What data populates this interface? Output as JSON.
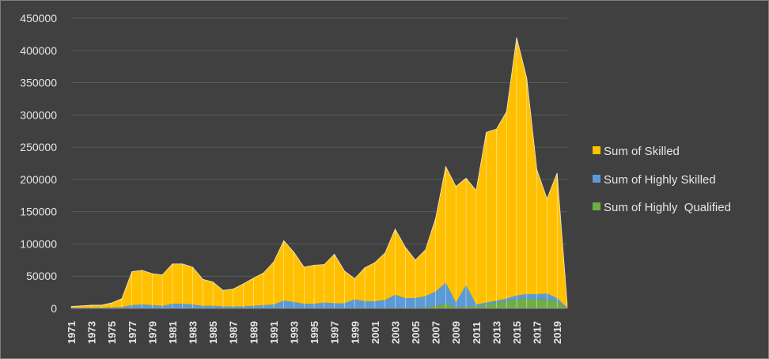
{
  "chart_data": {
    "type": "area",
    "stacked": true,
    "title": "",
    "xlabel": "",
    "ylabel": "",
    "ylim": [
      0,
      450000
    ],
    "yticks": [
      0,
      50000,
      100000,
      150000,
      200000,
      250000,
      300000,
      350000,
      400000,
      450000
    ],
    "ytick_labels": [
      "0",
      "50000",
      "100000",
      "150000",
      "200000",
      "250000",
      "300000",
      "350000",
      "400000",
      "450000"
    ],
    "grid": true,
    "legend_position": "right",
    "x": [
      1971,
      1972,
      1973,
      1974,
      1975,
      1976,
      1977,
      1978,
      1979,
      1980,
      1981,
      1982,
      1983,
      1984,
      1985,
      1986,
      1987,
      1988,
      1989,
      1990,
      1991,
      1992,
      1993,
      1994,
      1995,
      1996,
      1997,
      1998,
      1999,
      2000,
      2001,
      2002,
      2003,
      2004,
      2005,
      2006,
      2007,
      2008,
      2009,
      2010,
      2011,
      2012,
      2013,
      2014,
      2015,
      2016,
      2017,
      2018,
      2019,
      2020
    ],
    "xtick_labels": [
      "1971",
      "1973",
      "1975",
      "1977",
      "1979",
      "1981",
      "1983",
      "1985",
      "1987",
      "1989",
      "1991",
      "1993",
      "1995",
      "1997",
      "1999",
      "2001",
      "2003",
      "2005",
      "2007",
      "2009",
      "2011",
      "2013",
      "2015",
      "2017",
      "2019"
    ],
    "series": [
      {
        "name": "Sum of Highly  Qualified",
        "color": "#70ad47",
        "values": [
          0,
          0,
          0,
          0,
          0,
          0,
          0,
          0,
          0,
          0,
          0,
          0,
          0,
          0,
          0,
          0,
          0,
          0,
          0,
          0,
          0,
          0,
          0,
          0,
          0,
          0,
          0,
          0,
          0,
          0,
          0,
          0,
          0,
          0,
          0,
          2000,
          4000,
          7000,
          2000,
          3000,
          3000,
          6000,
          9000,
          11000,
          14000,
          15000,
          14000,
          14000,
          11000,
          0
        ]
      },
      {
        "name": "Sum of Highly Skilled",
        "color": "#5b9bd5",
        "values": [
          1000,
          1000,
          1000,
          1000,
          1500,
          2000,
          5000,
          6000,
          5000,
          4000,
          7000,
          7000,
          6000,
          4000,
          4000,
          3000,
          3000,
          3000,
          4000,
          5000,
          6000,
          12000,
          10000,
          7000,
          7000,
          9000,
          8000,
          8000,
          14000,
          11000,
          11000,
          13000,
          21000,
          16000,
          16000,
          17000,
          22000,
          33000,
          7000,
          33000,
          3000,
          3000,
          3000,
          4000,
          6000,
          7000,
          8000,
          9000,
          5000,
          500
        ]
      },
      {
        "name": "Sum of Skilled",
        "color": "#ffc000",
        "values": [
          2000,
          3000,
          4000,
          4000,
          7000,
          13000,
          52000,
          53000,
          49000,
          48000,
          62000,
          62000,
          58000,
          41000,
          37000,
          25000,
          27000,
          35000,
          43000,
          50000,
          66000,
          93000,
          77000,
          57000,
          60000,
          59000,
          76000,
          50000,
          32000,
          52000,
          60000,
          73000,
          102000,
          79000,
          59000,
          72000,
          114000,
          180000,
          180000,
          166000,
          177000,
          264000,
          266000,
          290000,
          400000,
          335000,
          193000,
          147000,
          194000,
          5000
        ]
      }
    ]
  },
  "legend": {
    "items": [
      {
        "label": "Sum of Skilled",
        "color": "#ffc000"
      },
      {
        "label": "Sum of Highly Skilled",
        "color": "#5b9bd5"
      },
      {
        "label": "Sum of Highly  Qualified",
        "color": "#70ad47"
      }
    ]
  }
}
